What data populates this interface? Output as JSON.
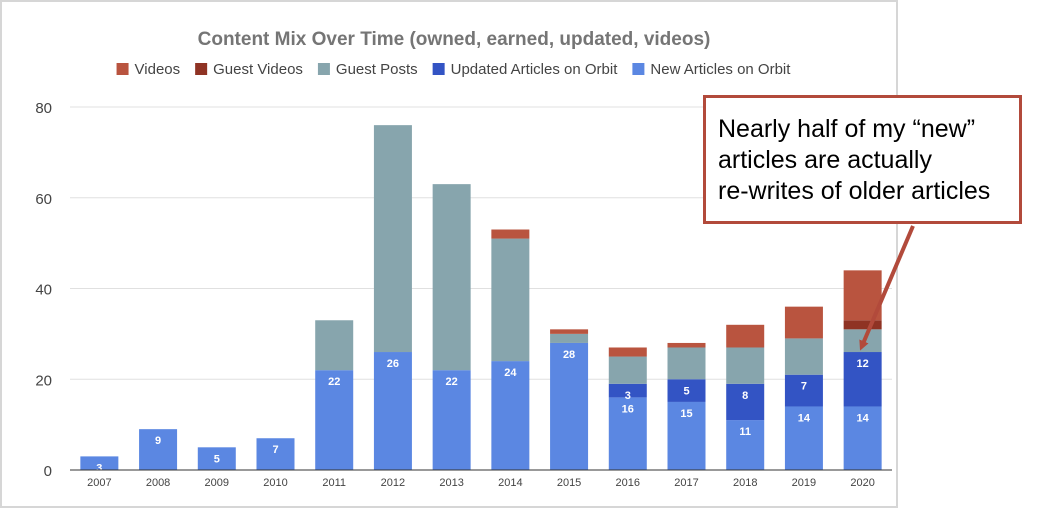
{
  "chart_data": {
    "type": "bar",
    "stacked": true,
    "title": "Content Mix Over Time (owned, earned, updated, videos)",
    "categories": [
      "2007",
      "2008",
      "2009",
      "2010",
      "2011",
      "2012",
      "2013",
      "2014",
      "2015",
      "2016",
      "2017",
      "2018",
      "2019",
      "2020"
    ],
    "series": [
      {
        "name": "New Articles on Orbit",
        "color": "#5b87e2",
        "values": [
          3,
          9,
          5,
          7,
          22,
          26,
          22,
          24,
          28,
          16,
          15,
          11,
          14,
          14
        ]
      },
      {
        "name": "Updated Articles on Orbit",
        "color": "#3354c4",
        "values": [
          0,
          0,
          0,
          0,
          0,
          0,
          0,
          0,
          0,
          3,
          5,
          8,
          7,
          12
        ]
      },
      {
        "name": "Guest Posts",
        "color": "#87a5ad",
        "values": [
          0,
          0,
          0,
          0,
          11,
          50,
          41,
          27,
          2,
          6,
          7,
          8,
          8,
          5
        ]
      },
      {
        "name": "Guest Videos",
        "color": "#8f3324",
        "values": [
          0,
          0,
          0,
          0,
          0,
          0,
          0,
          0,
          0,
          0,
          0,
          0,
          0,
          2
        ]
      },
      {
        "name": "Videos",
        "color": "#b9543f",
        "values": [
          0,
          0,
          0,
          0,
          0,
          0,
          0,
          2,
          1,
          2,
          1,
          5,
          7,
          11
        ]
      }
    ],
    "data_labels": {
      "New Articles on Orbit": [
        3,
        9,
        5,
        7,
        22,
        26,
        22,
        24,
        28,
        16,
        15,
        11,
        14,
        14
      ],
      "Updated Articles on Orbit": [
        null,
        null,
        null,
        null,
        null,
        null,
        null,
        null,
        null,
        3,
        5,
        8,
        7,
        12
      ]
    },
    "legend_order": [
      "Videos",
      "Guest Videos",
      "Guest Posts",
      "Updated Articles on Orbit",
      "New Articles on Orbit"
    ],
    "legend_position": "top",
    "yticks": [
      0,
      20,
      40,
      60,
      80
    ],
    "ylim": [
      0,
      80
    ],
    "grid": true,
    "xlabel": "",
    "ylabel": ""
  },
  "callout": {
    "lines": [
      "Nearly half of my “new”",
      "articles are actually",
      "re-writes of older articles"
    ]
  },
  "colors": {
    "title": "#757575",
    "axis_text": "#444444",
    "grid": "#e0e0e0",
    "baseline": "#333333",
    "callout_border": "#b24a3b",
    "arrow": "#b24a3b"
  }
}
